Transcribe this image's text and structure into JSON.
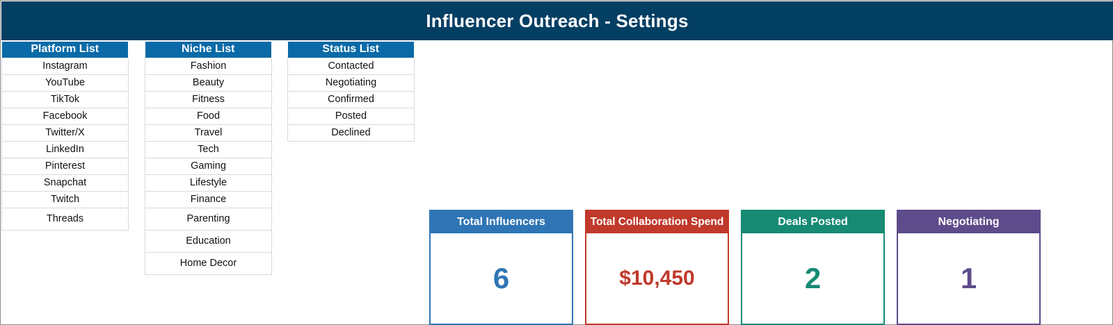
{
  "title": "Influencer Outreach - Settings",
  "lists": {
    "platform": {
      "header": "Platform List",
      "items": [
        "Instagram",
        "YouTube",
        "TikTok",
        "Facebook",
        "Twitter/X",
        "LinkedIn",
        "Pinterest",
        "Snapchat",
        "Twitch",
        "Threads"
      ]
    },
    "niche": {
      "header": "Niche List",
      "items": [
        "Fashion",
        "Beauty",
        "Fitness",
        "Food",
        "Travel",
        "Tech",
        "Gaming",
        "Lifestyle",
        "Finance",
        "Parenting",
        "Education",
        "Home Decor"
      ]
    },
    "status": {
      "header": "Status List",
      "items": [
        "Contacted",
        "Negotiating",
        "Confirmed",
        "Posted",
        "Declined"
      ]
    }
  },
  "kpis": {
    "total_influencers": {
      "label": "Total Influencers",
      "value": "6",
      "color": "#2f75b5"
    },
    "total_spend": {
      "label": "Total Collaboration Spend",
      "value": "$10,450",
      "color": "#c0392b"
    },
    "deals_posted": {
      "label": "Deals Posted",
      "value": "2",
      "color": "#168a73"
    },
    "negotiating": {
      "label": "Negotiating",
      "value": "1",
      "color": "#5e4b8b"
    }
  }
}
